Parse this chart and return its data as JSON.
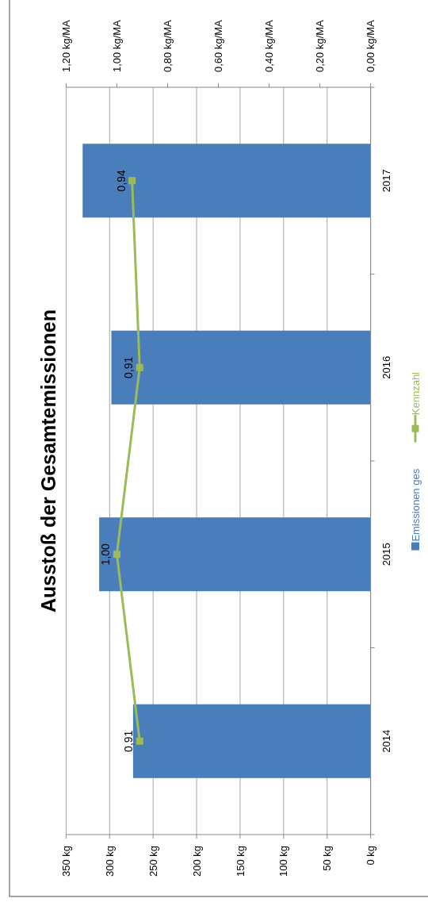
{
  "chart_data": {
    "type": "bar",
    "orientation": "horizontal",
    "title": "Ausstoß der Gesamtemissionen",
    "categories": [
      "2017",
      "2016",
      "2015",
      "2014"
    ],
    "series": [
      {
        "name": "Emissionen ges",
        "color": "#4a7ebb",
        "values": [
          331,
          298,
          312,
          273
        ]
      },
      {
        "name": "Kennzahl",
        "type": "line",
        "axis": "x2",
        "color": "#9bbb59",
        "values": [
          0.94,
          0.91,
          1.0,
          0.91
        ],
        "value_labels": [
          "0,94",
          "0,91",
          "1,00",
          "0,91"
        ]
      }
    ],
    "xlim": [
      350,
      0
    ],
    "xticks": [
      {
        "value": 350,
        "label": "350 kg"
      },
      {
        "value": 300,
        "label": "300 kg"
      },
      {
        "value": 250,
        "label": "250 kg"
      },
      {
        "value": 200,
        "label": "200 kg"
      },
      {
        "value": 150,
        "label": "150 kg"
      },
      {
        "value": 100,
        "label": "100 kg"
      },
      {
        "value": 50,
        "label": "50 kg"
      },
      {
        "value": 0,
        "label": "0 kg"
      }
    ],
    "x2lim": [
      1.2,
      0
    ],
    "x2ticks": [
      {
        "value": 1.2,
        "label": "1,20 kg/MA"
      },
      {
        "value": 1.0,
        "label": "1,00 kg/MA"
      },
      {
        "value": 0.8,
        "label": "0,80 kg/MA"
      },
      {
        "value": 0.6,
        "label": "0,60 kg/MA"
      },
      {
        "value": 0.4,
        "label": "0,40 kg/MA"
      },
      {
        "value": 0.2,
        "label": "0,20 kg/MA"
      },
      {
        "value": 0,
        "label": "0,00 kg/MA"
      }
    ],
    "grid": "x",
    "legend": "right",
    "marker": "square",
    "line_style": "solid"
  }
}
